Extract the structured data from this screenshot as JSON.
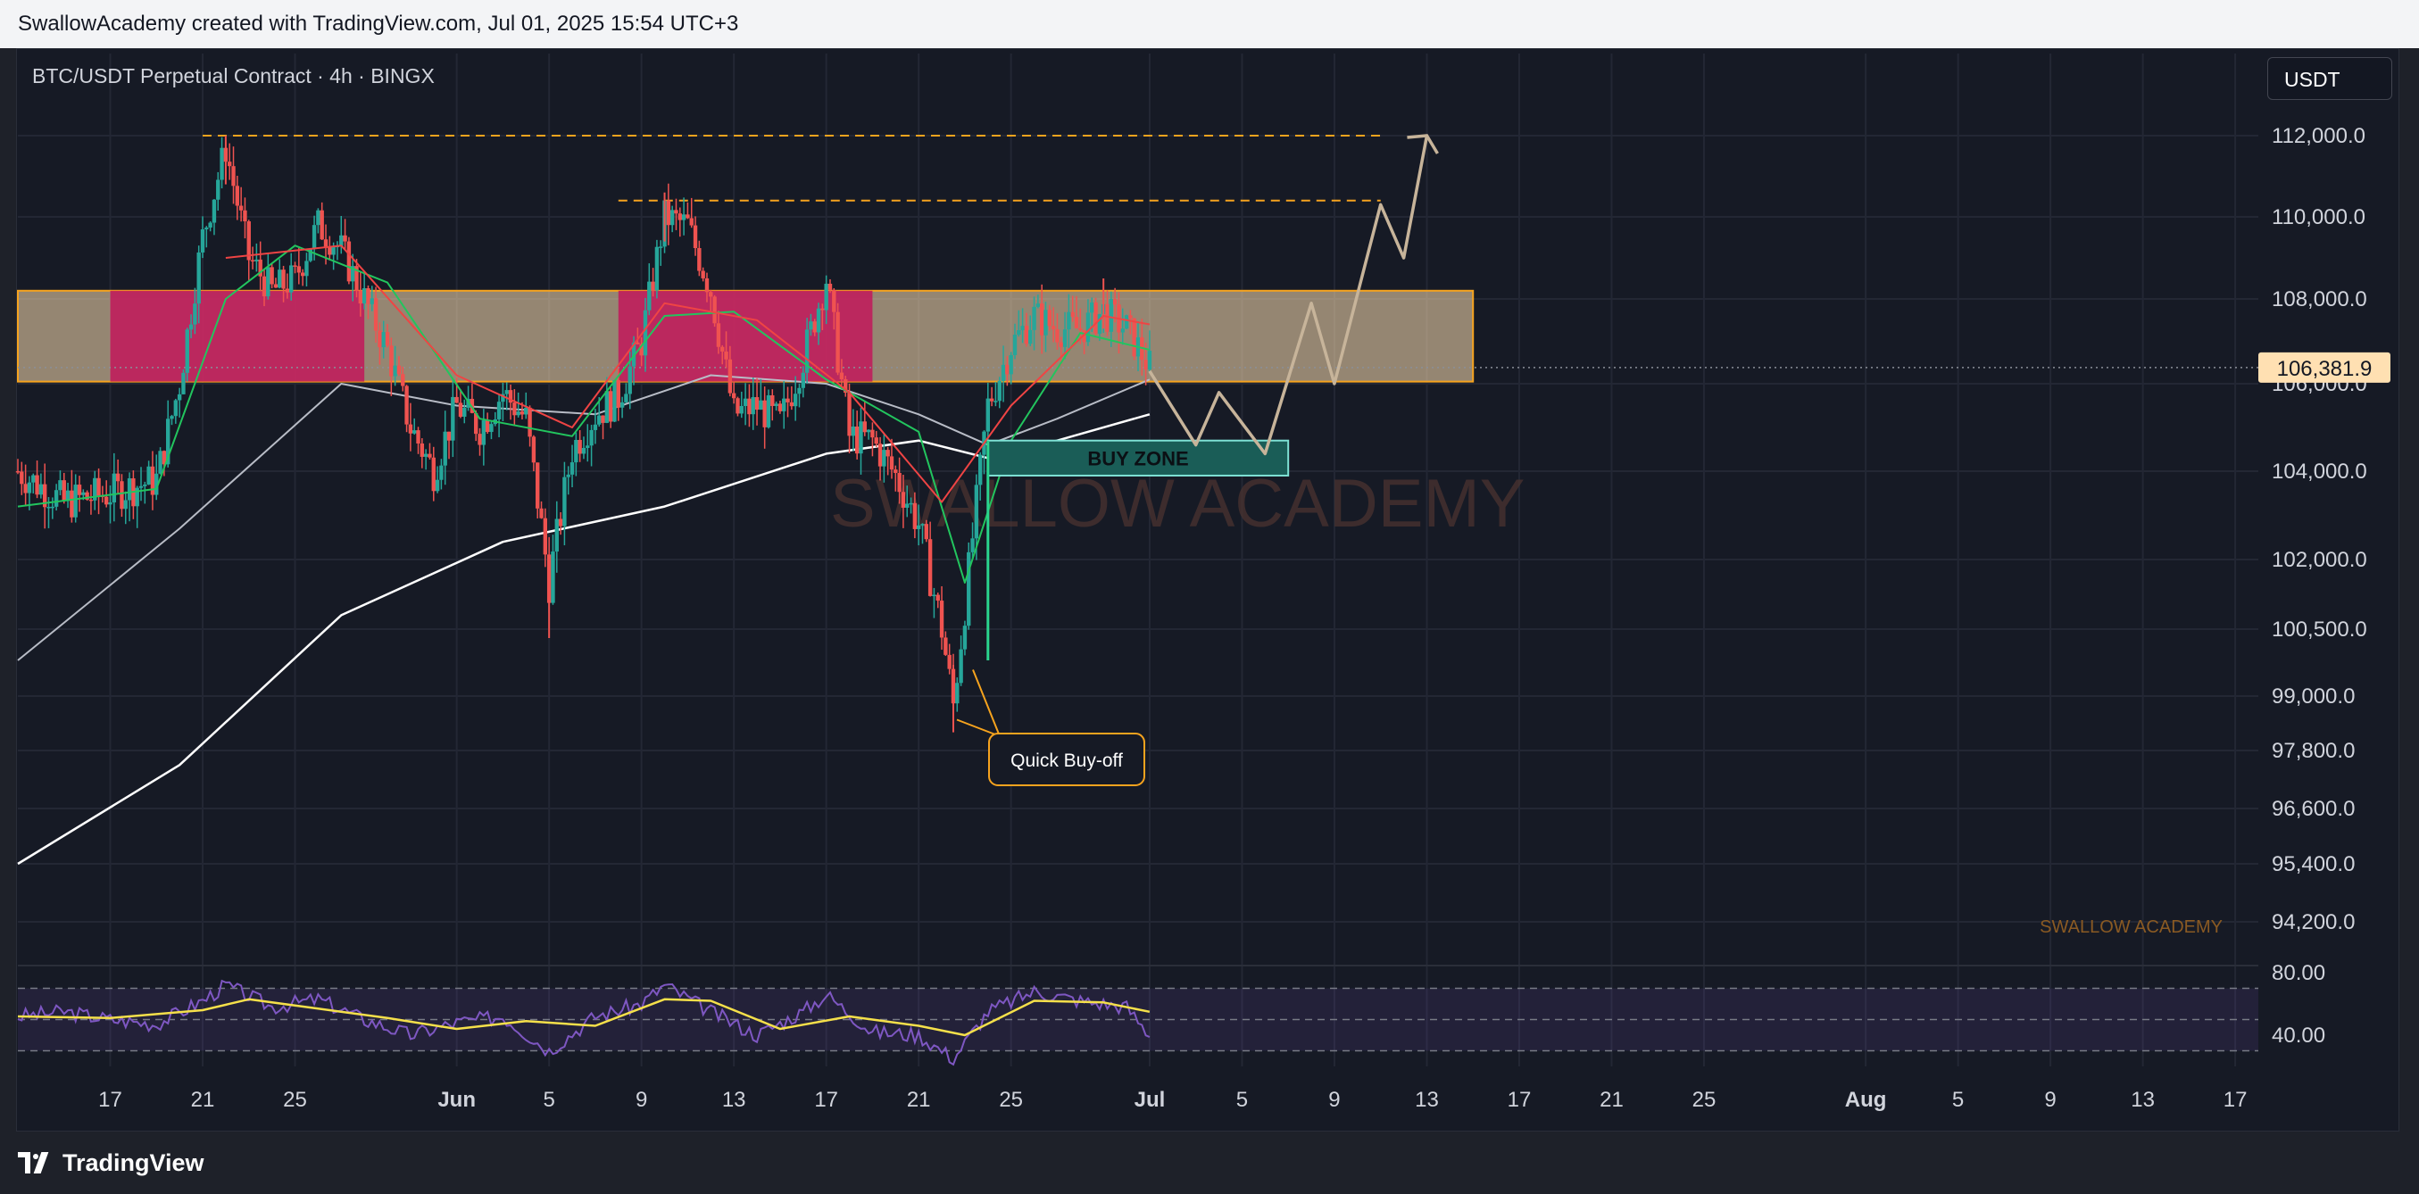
{
  "header": {
    "title": "SwallowAcademy created with TradingView.com, Jul 01, 2025 15:54 UTC+3"
  },
  "legend": {
    "symbol": "BTC/USDT Perpetual Contract · 4h · BINGX"
  },
  "currency_button": "USDT",
  "footer": {
    "brand": "TradingView"
  },
  "colors": {
    "background": "#161a25",
    "up_candle": "#26a69a",
    "down_candle": "#ef5350",
    "resistance_zone": "#ffe0b2",
    "magenta_zone": "#c2185b",
    "buy_zone": "#1a5d57",
    "accent_orange": "#f6a31e",
    "ma_green": "#22c55e",
    "ma_red": "#ef4444",
    "ma_white": "#ffffff",
    "rsi": "#7e57c2",
    "rsi_signal": "#f5e04a"
  },
  "chart_data": {
    "type": "candlestick",
    "title": "BTC/USDT Perpetual Contract · 4h · BINGX",
    "watermark": "SWALLOW ACADEMY",
    "signature": "SWALLOW ACADEMY",
    "y_ticks": [
      "112,000.0",
      "110,000.0",
      "108,000.0",
      "106,000.0",
      "104,000.0",
      "102,000.0",
      "100,500.0",
      "99,000.0",
      "97,800.0",
      "96,600.0",
      "95,400.0",
      "94,200.0"
    ],
    "y_tick_values": [
      112000,
      110000,
      108000,
      106000,
      104000,
      102000,
      100500,
      99000,
      97800,
      96600,
      95400,
      94200
    ],
    "ylim": [
      93300,
      113000
    ],
    "x_ticks": [
      "17",
      "21",
      "25",
      "Jun",
      "5",
      "9",
      "13",
      "17",
      "21",
      "25",
      "Jul",
      "5",
      "9",
      "13",
      "17",
      "21",
      "25",
      "Aug",
      "5",
      "9",
      "13",
      "17"
    ],
    "x_tick_dates": [
      "2025-05-17",
      "2025-05-21",
      "2025-05-25",
      "2025-06-01",
      "2025-06-05",
      "2025-06-09",
      "2025-06-13",
      "2025-06-17",
      "2025-06-21",
      "2025-06-25",
      "2025-07-01",
      "2025-07-05",
      "2025-07-09",
      "2025-07-13",
      "2025-07-17",
      "2025-07-21",
      "2025-07-25",
      "2025-08-01",
      "2025-08-05",
      "2025-08-09",
      "2025-08-13",
      "2025-08-17"
    ],
    "xlim": [
      "2025-05-13",
      "2025-08-18"
    ],
    "current_price": {
      "label": "106,381.9",
      "value": 106381.9
    },
    "price_path": [
      [
        "2025-05-13",
        104000
      ],
      [
        "2025-05-15",
        103300
      ],
      [
        "2025-05-17",
        103500
      ],
      [
        "2025-05-19",
        103800
      ],
      [
        "2025-05-20",
        106000
      ],
      [
        "2025-05-21",
        109500
      ],
      [
        "2025-05-22",
        111700
      ],
      [
        "2025-05-23",
        109000
      ],
      [
        "2025-05-24",
        108200
      ],
      [
        "2025-05-25",
        108500
      ],
      [
        "2025-05-26",
        109800
      ],
      [
        "2025-05-27",
        109200
      ],
      [
        "2025-05-28",
        108000
      ],
      [
        "2025-05-29",
        106800
      ],
      [
        "2025-05-30",
        105000
      ],
      [
        "2025-05-31",
        104000
      ],
      [
        "2025-06-01",
        105500
      ],
      [
        "2025-06-02",
        105000
      ],
      [
        "2025-06-03",
        105800
      ],
      [
        "2025-06-04",
        105200
      ],
      [
        "2025-06-05",
        101500
      ],
      [
        "2025-06-06",
        104500
      ],
      [
        "2025-06-07",
        105300
      ],
      [
        "2025-06-08",
        105700
      ],
      [
        "2025-06-09",
        107000
      ],
      [
        "2025-06-10",
        110000
      ],
      [
        "2025-06-11",
        109800
      ],
      [
        "2025-06-12",
        108200
      ],
      [
        "2025-06-13",
        105300
      ],
      [
        "2025-06-14",
        105500
      ],
      [
        "2025-06-15",
        105100
      ],
      [
        "2025-06-16",
        106600
      ],
      [
        "2025-06-17",
        108500
      ],
      [
        "2025-06-18",
        104800
      ],
      [
        "2025-06-19",
        104700
      ],
      [
        "2025-06-20",
        103900
      ],
      [
        "2025-06-21",
        102800
      ],
      [
        "2025-06-22",
        100500
      ],
      [
        "2025-06-22T12:00",
        98800
      ],
      [
        "2025-06-23",
        101000
      ],
      [
        "2025-06-24",
        105500
      ],
      [
        "2025-06-25",
        106900
      ],
      [
        "2025-06-26",
        107600
      ],
      [
        "2025-06-27",
        107300
      ],
      [
        "2025-06-28",
        107300
      ],
      [
        "2025-06-29",
        107700
      ],
      [
        "2025-06-30",
        107300
      ],
      [
        "2025-07-01",
        106400
      ]
    ],
    "high_events": [
      [
        "2025-05-22",
        112000
      ],
      [
        "2025-06-10",
        110600
      ],
      [
        "2025-06-29",
        108500
      ]
    ],
    "low_events": [
      [
        "2025-06-05",
        100300
      ],
      [
        "2025-06-22T12:00",
        98200
      ]
    ],
    "ma_white_200": [
      [
        "2025-05-13",
        95400
      ],
      [
        "2025-05-20",
        97500
      ],
      [
        "2025-05-27",
        100800
      ],
      [
        "2025-06-03",
        102400
      ],
      [
        "2025-06-10",
        103200
      ],
      [
        "2025-06-17",
        104400
      ],
      [
        "2025-06-21",
        104700
      ],
      [
        "2025-06-24",
        104300
      ],
      [
        "2025-06-27",
        104700
      ],
      [
        "2025-07-01",
        105300
      ]
    ],
    "ma_grey_100": [
      [
        "2025-05-13",
        99800
      ],
      [
        "2025-05-20",
        102700
      ],
      [
        "2025-05-27",
        106000
      ],
      [
        "2025-06-01",
        105500
      ],
      [
        "2025-06-07",
        105300
      ],
      [
        "2025-06-12",
        106200
      ],
      [
        "2025-06-17",
        106000
      ],
      [
        "2025-06-21",
        105300
      ],
      [
        "2025-06-24",
        104600
      ],
      [
        "2025-06-27",
        105200
      ],
      [
        "2025-07-01",
        106100
      ]
    ],
    "ma_green": [
      [
        "2025-05-13",
        103200
      ],
      [
        "2025-05-19",
        103600
      ],
      [
        "2025-05-22",
        108000
      ],
      [
        "2025-05-25",
        109300
      ],
      [
        "2025-05-29",
        108400
      ],
      [
        "2025-06-02",
        105200
      ],
      [
        "2025-06-06",
        104800
      ],
      [
        "2025-06-10",
        107600
      ],
      [
        "2025-06-13",
        107700
      ],
      [
        "2025-06-17",
        106100
      ],
      [
        "2025-06-21",
        104900
      ],
      [
        "2025-06-23",
        101500
      ],
      [
        "2025-06-25",
        104700
      ],
      [
        "2025-06-28",
        107200
      ],
      [
        "2025-07-01",
        106800
      ]
    ],
    "ma_red": [
      [
        "2025-05-22",
        109000
      ],
      [
        "2025-05-27",
        109300
      ],
      [
        "2025-06-01",
        106200
      ],
      [
        "2025-06-06",
        105000
      ],
      [
        "2025-06-10",
        107900
      ],
      [
        "2025-06-14",
        107500
      ],
      [
        "2025-06-18",
        105800
      ],
      [
        "2025-06-22",
        103300
      ],
      [
        "2025-06-25",
        105500
      ],
      [
        "2025-06-29",
        107600
      ],
      [
        "2025-07-01",
        107400
      ]
    ],
    "resistance_zone": {
      "from": "2025-05-13",
      "to": "2025-07-15",
      "y_top": 108200,
      "y_bottom": 106050
    },
    "magenta_zones": [
      {
        "from": "2025-05-17",
        "to": "2025-05-28",
        "y_top": 108200,
        "y_bottom": 106050
      },
      {
        "from": "2025-06-08",
        "to": "2025-06-19",
        "y_top": 108200,
        "y_bottom": 106050
      }
    ],
    "buy_zone": {
      "label": "BUY ZONE",
      "from": "2025-06-24",
      "to": "2025-07-07",
      "y_top": 104700,
      "y_bottom": 103900
    },
    "dashed_levels": [
      {
        "value": 112000,
        "from": "2025-05-21",
        "to": "2025-07-11"
      },
      {
        "value": 110400,
        "from": "2025-06-08",
        "to": "2025-07-11"
      }
    ],
    "annotation": {
      "label": "Quick Buy-off",
      "target_date": "2025-06-22T12:00",
      "target_value": 98400
    },
    "projection": [
      [
        "2025-07-01",
        106300
      ],
      [
        "2025-07-03",
        104600
      ],
      [
        "2025-07-04",
        105800
      ],
      [
        "2025-07-06",
        104400
      ],
      [
        "2025-07-08",
        107900
      ],
      [
        "2025-07-09",
        106000
      ],
      [
        "2025-07-11",
        110300
      ],
      [
        "2025-07-12",
        109000
      ],
      [
        "2025-07-13",
        112000
      ]
    ],
    "rsi": {
      "ticks": [
        "80.00",
        "40.00"
      ],
      "tick_values": [
        80,
        40
      ],
      "levels": [
        70,
        50,
        30
      ],
      "ylim": [
        20,
        80
      ],
      "values": [
        [
          "2025-05-13",
          52
        ],
        [
          "2025-05-15",
          55
        ],
        [
          "2025-05-17",
          50
        ],
        [
          "2025-05-19",
          47
        ],
        [
          "2025-05-21",
          62
        ],
        [
          "2025-05-22",
          72
        ],
        [
          "2025-05-24",
          58
        ],
        [
          "2025-05-26",
          63
        ],
        [
          "2025-05-28",
          50
        ],
        [
          "2025-05-30",
          40
        ],
        [
          "2025-06-01",
          48
        ],
        [
          "2025-06-03",
          52
        ],
        [
          "2025-06-05",
          30
        ],
        [
          "2025-06-07",
          52
        ],
        [
          "2025-06-09",
          60
        ],
        [
          "2025-06-10",
          72
        ],
        [
          "2025-06-12",
          55
        ],
        [
          "2025-06-14",
          40
        ],
        [
          "2025-06-16",
          55
        ],
        [
          "2025-06-17",
          66
        ],
        [
          "2025-06-19",
          42
        ],
        [
          "2025-06-21",
          40
        ],
        [
          "2025-06-22T12:00",
          25
        ],
        [
          "2025-06-24",
          55
        ],
        [
          "2025-06-26",
          68
        ],
        [
          "2025-06-28",
          62
        ],
        [
          "2025-06-30",
          58
        ],
        [
          "2025-07-01",
          40
        ]
      ],
      "signal": [
        [
          "2025-05-13",
          52
        ],
        [
          "2025-05-17",
          51
        ],
        [
          "2025-05-21",
          56
        ],
        [
          "2025-05-23",
          63
        ],
        [
          "2025-05-26",
          57
        ],
        [
          "2025-05-29",
          51
        ],
        [
          "2025-06-01",
          44
        ],
        [
          "2025-06-04",
          49
        ],
        [
          "2025-06-07",
          46
        ],
        [
          "2025-06-10",
          63
        ],
        [
          "2025-06-12",
          62
        ],
        [
          "2025-06-15",
          44
        ],
        [
          "2025-06-18",
          52
        ],
        [
          "2025-06-21",
          46
        ],
        [
          "2025-06-23",
          40
        ],
        [
          "2025-06-26",
          62
        ],
        [
          "2025-06-29",
          61
        ],
        [
          "2025-07-01",
          55
        ]
      ]
    }
  }
}
